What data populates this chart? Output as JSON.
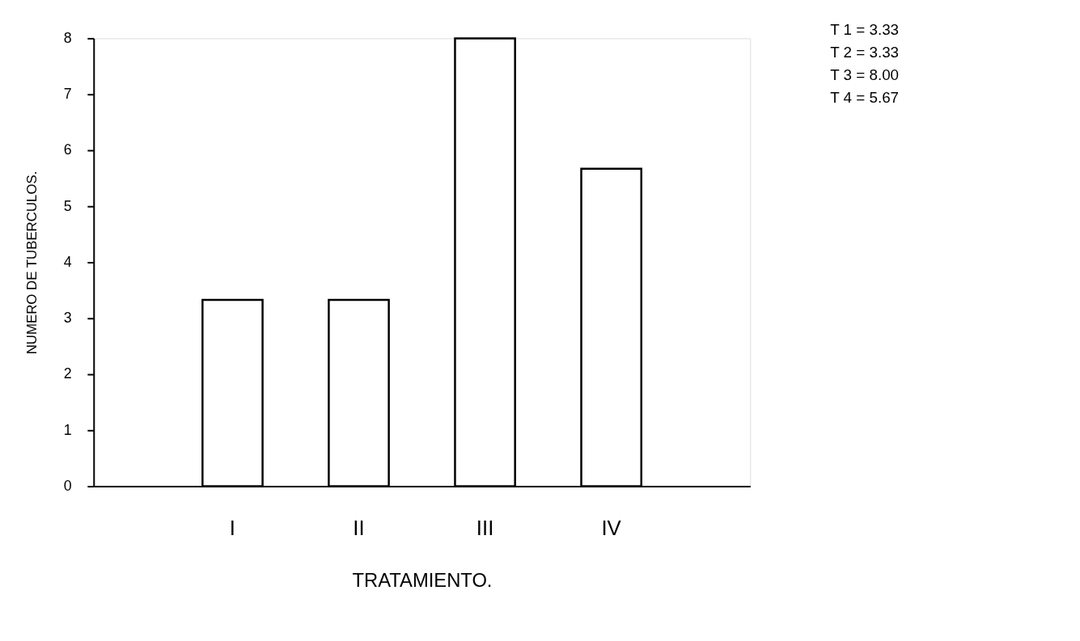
{
  "chart_data": {
    "type": "bar",
    "xlabel": "TRATAMIENTO.",
    "ylabel": "NUMERO   DE   TUBERCULOS.",
    "categories": [
      "I",
      "II",
      "III",
      "IV"
    ],
    "values": [
      3.33,
      3.33,
      8.0,
      5.67
    ],
    "color": "#ffffff",
    "ylim": [
      0,
      8
    ],
    "yticks": [
      0,
      1,
      2,
      3,
      4,
      5,
      6,
      7,
      8
    ],
    "grid": false,
    "annotations": [
      "T 1 =  3.33",
      "T 2 =  3.33",
      "T 3 =  8.00",
      "T 4 =  5.67"
    ]
  }
}
